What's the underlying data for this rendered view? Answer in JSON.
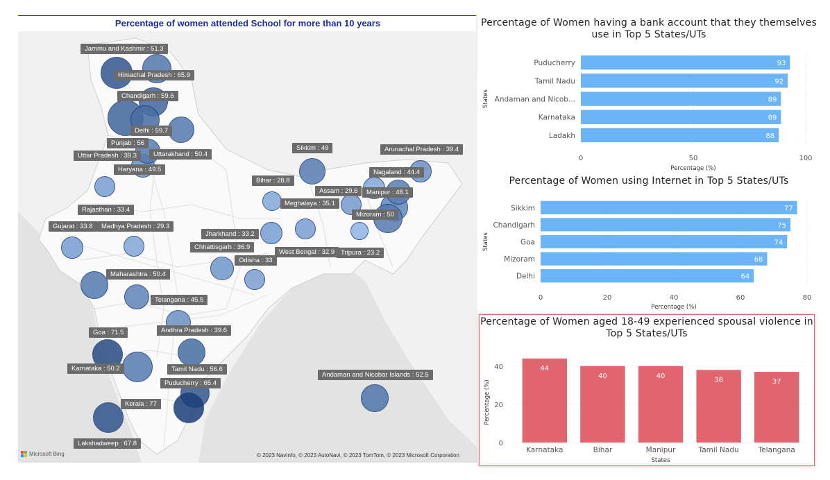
{
  "map": {
    "title": "Percentage of women attended School for more than 10 years",
    "attribution": "© 2023 NavInfo, © 2023 AutoNavi, © 2023 TomTom, © 2023 Microsoft Corporation",
    "bing_label": "Microsoft Bing",
    "bubble_fill_low": "#8fb5e6",
    "bubble_fill_high": "#1c3f78",
    "labels": [
      {
        "id": "jk",
        "text": "Jammu and Kashmir : 51.3",
        "value": 51.3
      },
      {
        "id": "hp",
        "text": "Himachal Pradesh : 65.9",
        "value": 65.9
      },
      {
        "id": "ch",
        "text": "Chandigarh : 59.6",
        "value": 59.6
      },
      {
        "id": "dl",
        "text": "Delhi : 59.7",
        "value": 59.7
      },
      {
        "id": "pb",
        "text": "Punjab : 56",
        "value": 56
      },
      {
        "id": "up",
        "text": "Uttar Pradesh : 39.3",
        "value": 39.3
      },
      {
        "id": "uk",
        "text": "Uttarakhand : 50.4",
        "value": 50.4
      },
      {
        "id": "hr",
        "text": "Haryana : 49.5",
        "value": 49.5
      },
      {
        "id": "sk",
        "text": "Sikkim : 49",
        "value": 49
      },
      {
        "id": "ar",
        "text": "Arunachal Pradesh : 39.4",
        "value": 39.4
      },
      {
        "id": "nl",
        "text": "Nagaland : 44.4",
        "value": 44.4
      },
      {
        "id": "br",
        "text": "Bihar : 28.8",
        "value": 28.8
      },
      {
        "id": "as",
        "text": "Assam : 29.6",
        "value": 29.6
      },
      {
        "id": "mn",
        "text": "Manipur : 48.1",
        "value": 48.1
      },
      {
        "id": "ml",
        "text": "Meghalaya : 35.1",
        "value": 35.1
      },
      {
        "id": "mz",
        "text": "Mizoram : 50",
        "value": 50
      },
      {
        "id": "rj",
        "text": "Rajasthan : 33.4",
        "value": 33.4
      },
      {
        "id": "gj",
        "text": "Gujarat : 33.8",
        "value": 33.8
      },
      {
        "id": "mp",
        "text": "Madhya Pradesh : 29.3",
        "value": 29.3
      },
      {
        "id": "jh",
        "text": "Jharkhand : 33.2",
        "value": 33.2
      },
      {
        "id": "cg",
        "text": "Chhattisgarh : 36.9",
        "value": 36.9
      },
      {
        "id": "wb",
        "text": "West Bengal : 32.9",
        "value": 32.9
      },
      {
        "id": "tr",
        "text": "Tripura : 23.2",
        "value": 23.2
      },
      {
        "id": "od",
        "text": "Odisha : 33",
        "value": 33
      },
      {
        "id": "mh",
        "text": "Maharashtra : 50.4",
        "value": 50.4
      },
      {
        "id": "tg",
        "text": "Telangana : 45.5",
        "value": 45.5
      },
      {
        "id": "ap",
        "text": "Andhra Pradesh : 39.6",
        "value": 39.6
      },
      {
        "id": "ga",
        "text": "Goa : 71.5",
        "value": 71.5
      },
      {
        "id": "ka",
        "text": "Karnataka : 50.2",
        "value": 50.2
      },
      {
        "id": "tn",
        "text": "Tamil Nadu : 56.6",
        "value": 56.6
      },
      {
        "id": "py",
        "text": "Puducherry : 65.4",
        "value": 65.4
      },
      {
        "id": "an",
        "text": "Andaman and Nicobar Islands : 52.5",
        "value": 52.5
      },
      {
        "id": "kl",
        "text": "Kerala : 77",
        "value": 77
      },
      {
        "id": "ld",
        "text": "Lakshadweep : 67.8",
        "value": 67.8
      }
    ]
  },
  "chart_data": [
    {
      "id": "bank",
      "type": "bar",
      "orientation": "horizontal",
      "title": "Percentage of Women having a bank account that they themselves use in Top 5 States/UTs",
      "xlabel": "Percentage (%)",
      "ylabel": "States",
      "categories": [
        "Puducherry",
        "Tamil Nadu",
        "Andaman and Nicob...",
        "Karnataka",
        "Ladakh"
      ],
      "values": [
        93,
        92,
        89,
        89,
        88
      ],
      "xlim": [
        0,
        100
      ],
      "ticks": [
        0,
        50,
        100
      ],
      "color": "#6cb4f5"
    },
    {
      "id": "internet",
      "type": "bar",
      "orientation": "horizontal",
      "title": "Percentage of Women using Internet in Top 5 States/UTs",
      "xlabel": "Percentage (%)",
      "ylabel": "States",
      "categories": [
        "Sikkim",
        "Chandigarh",
        "Goa",
        "Mizoram",
        "Delhi"
      ],
      "values": [
        77,
        75,
        74,
        68,
        64
      ],
      "xlim": [
        0,
        80
      ],
      "ticks": [
        0,
        20,
        40,
        60,
        80
      ],
      "color": "#6cb4f5"
    },
    {
      "id": "violence",
      "type": "bar",
      "orientation": "vertical",
      "title": "Percentage of Women aged 18-49 experienced spousal violence in Top 5 States/UTs",
      "xlabel": "States",
      "ylabel": "Percentage (%)",
      "categories": [
        "Karnataka",
        "Bihar",
        "Manipur",
        "Tamil Nadu",
        "Telangana"
      ],
      "values": [
        44,
        40,
        40,
        38,
        37
      ],
      "ylim": [
        0,
        45
      ],
      "ticks": [
        0,
        20,
        40
      ],
      "color": "#e0656f"
    }
  ]
}
